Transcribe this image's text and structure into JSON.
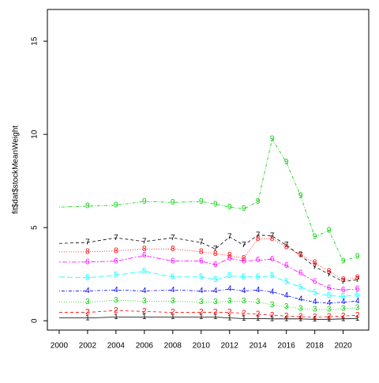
{
  "chart_data": {
    "type": "line",
    "ylabel": "fit$dat$stockMeanWeight",
    "x": [
      2000,
      2002,
      2004,
      2006,
      2008,
      2010,
      2011,
      2012,
      2013,
      2014,
      2015,
      2016,
      2017,
      2018,
      2019,
      2020,
      2021
    ],
    "xlim": [
      1999.17,
      2021.8
    ],
    "xticks": [
      2000,
      2002,
      2004,
      2006,
      2008,
      2010,
      2012,
      2014,
      2016,
      2018,
      2020
    ],
    "ylim": [
      -0.5,
      16.7
    ],
    "yticks": [
      0,
      5,
      10,
      15
    ],
    "series": [
      {
        "name": "1",
        "color": "#000000",
        "dash": "none",
        "values": [
          0.15,
          0.15,
          0.2,
          0.2,
          0.2,
          0.2,
          0.2,
          0.15,
          0.12,
          0.12,
          0.1,
          0.1,
          0.1,
          0.08,
          0.08,
          0.1,
          0.12
        ]
      },
      {
        "name": "2",
        "color": "#ff0000",
        "dash": "4 3",
        "values": [
          0.45,
          0.45,
          0.55,
          0.5,
          0.45,
          0.45,
          0.45,
          0.45,
          0.4,
          0.35,
          0.3,
          0.25,
          0.22,
          0.2,
          0.22,
          0.25,
          0.3
        ]
      },
      {
        "name": "3",
        "color": "#00cd00",
        "dash": "1 2",
        "values": [
          1.0,
          1.0,
          1.1,
          1.05,
          1.05,
          1.0,
          1.0,
          1.05,
          1.05,
          1.0,
          0.85,
          0.75,
          0.65,
          0.6,
          0.6,
          0.65,
          0.7
        ]
      },
      {
        "name": "4",
        "color": "#0000ff",
        "dash": "1 2 4 2",
        "values": [
          1.6,
          1.6,
          1.65,
          1.6,
          1.65,
          1.6,
          1.6,
          1.7,
          1.6,
          1.65,
          1.55,
          1.35,
          1.15,
          1.0,
          0.95,
          1.0,
          1.05
        ]
      },
      {
        "name": "5",
        "color": "#00ffff",
        "dash": "7 3",
        "values": [
          2.35,
          2.3,
          2.45,
          2.65,
          2.35,
          2.35,
          2.2,
          2.4,
          2.35,
          2.35,
          2.4,
          2.1,
          1.8,
          1.5,
          1.35,
          1.3,
          1.4
        ]
      },
      {
        "name": "6",
        "color": "#ff00ff",
        "dash": "2 2 6 2",
        "values": [
          3.15,
          3.15,
          3.2,
          3.5,
          3.2,
          3.2,
          3.0,
          3.35,
          3.2,
          3.25,
          3.3,
          2.95,
          2.55,
          2.1,
          1.75,
          1.65,
          1.7
        ]
      },
      {
        "name": "7",
        "color": "#000000",
        "dash": "4 3",
        "values": [
          4.15,
          4.2,
          4.45,
          4.25,
          4.45,
          4.2,
          3.85,
          4.5,
          4.05,
          4.6,
          4.55,
          4.05,
          3.5,
          2.9,
          2.5,
          2.1,
          2.2
        ]
      },
      {
        "name": "8",
        "color": "#ff0000",
        "dash": "1 2",
        "values": [
          3.7,
          3.7,
          3.75,
          3.85,
          3.85,
          3.7,
          3.6,
          3.5,
          3.35,
          4.4,
          4.4,
          3.95,
          3.55,
          3.1,
          2.65,
          2.2,
          2.3
        ]
      },
      {
        "name": "9",
        "color": "#00cd00",
        "dash": "1 2 4 2",
        "values": [
          6.1,
          6.15,
          6.2,
          6.4,
          6.35,
          6.4,
          6.25,
          6.1,
          6.0,
          6.4,
          9.75,
          8.5,
          6.7,
          4.5,
          4.85,
          3.2,
          3.45
        ]
      }
    ]
  }
}
